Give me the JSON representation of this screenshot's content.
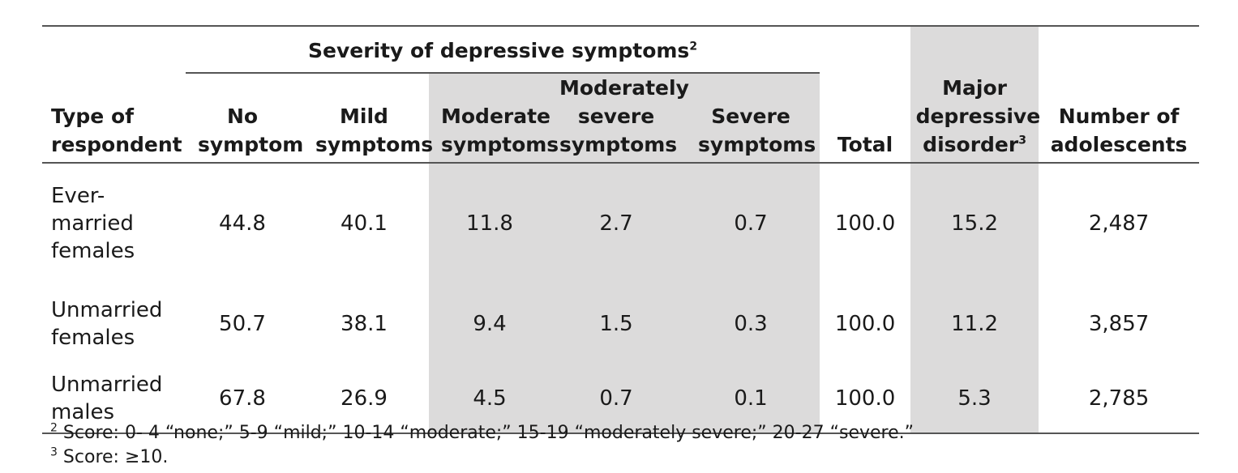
{
  "header": {
    "group_label": "Severity of depressive symptoms",
    "group_sup": "2",
    "columns": [
      "Type of respondent",
      "No symptom",
      "Mild symptoms",
      "Moderate symptoms",
      "Moderately severe symptoms",
      "Severe symptoms",
      "Total",
      "Major depressive disorder",
      "Number of adolescents"
    ],
    "mdd_sup": "3"
  },
  "rows": [
    {
      "label": "Ever-married females",
      "values": [
        "44.8",
        "40.1",
        "11.8",
        "2.7",
        "0.7",
        "100.0",
        "15.2",
        "2,487"
      ]
    },
    {
      "label": "Unmarried females",
      "values": [
        "50.7",
        "38.1",
        "9.4",
        "1.5",
        "0.3",
        "100.0",
        "11.2",
        "3,857"
      ]
    },
    {
      "label": "Unmarried males",
      "values": [
        "67.8",
        "26.9",
        "4.5",
        "0.7",
        "0.1",
        "100.0",
        "5.3",
        "2,785"
      ]
    }
  ],
  "notes": [
    {
      "sup": "2",
      "text": "Score: 0- 4 “none;” 5-9 “mild;” 10-14 “moderate;” 15-19 “moderately severe;” 20-27 “severe.”"
    },
    {
      "sup": "3",
      "text": "Score: ≥10."
    }
  ],
  "colors": {
    "shade": "#dcdbdb",
    "rule": "#555555"
  }
}
